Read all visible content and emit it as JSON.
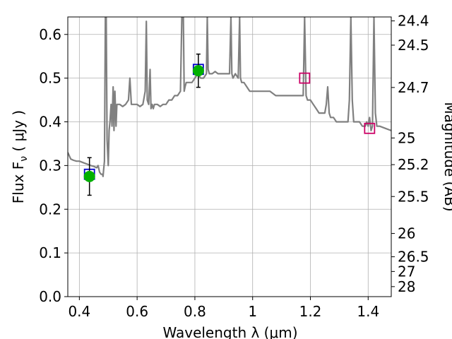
{
  "chart_data": {
    "type": "line",
    "title": "",
    "xlabel": "Wavelength  λ (μm)",
    "ylabel": "Flux  F",
    "ylabel_sub": "ν",
    "ylabel_unit": " ( μJy )",
    "y2label": "Magnitude (AB)",
    "xlim": [
      0.36,
      1.48
    ],
    "ylim": [
      0.0,
      0.64
    ],
    "grid": true,
    "x_ticks": [
      0.4,
      0.6,
      0.8,
      1.0,
      1.2,
      1.4
    ],
    "x_tick_labels": [
      "0.4",
      "0.6",
      "0.8",
      "1",
      "1.2",
      "1.4"
    ],
    "y_ticks": [
      0.0,
      0.1,
      0.2,
      0.3,
      0.4,
      0.5,
      0.6
    ],
    "y_tick_labels": [
      "0.0",
      "0.1",
      "0.2",
      "0.3",
      "0.4",
      "0.5",
      "0.6"
    ],
    "y2_ticks": [
      24.4,
      24.5,
      24.7,
      25,
      25.2,
      25.5,
      26,
      26.5,
      27,
      28
    ],
    "y2_tick_labels": [
      "24.4",
      "24.5",
      "24.7",
      "25",
      "25.2",
      "25.5",
      "26",
      "26.5",
      "27",
      "28"
    ],
    "series": [
      {
        "kind": "spectrum",
        "color": "#808080",
        "x": [
          0.36,
          0.37,
          0.38,
          0.39,
          0.4,
          0.42,
          0.44,
          0.45,
          0.46,
          0.465,
          0.47,
          0.475,
          0.48,
          0.482,
          0.484,
          0.487,
          0.49,
          0.493,
          0.496,
          0.5,
          0.503,
          0.506,
          0.51,
          0.513,
          0.517,
          0.52,
          0.523,
          0.527,
          0.53,
          0.535,
          0.54,
          0.55,
          0.56,
          0.57,
          0.575,
          0.58,
          0.585,
          0.59,
          0.6,
          0.61,
          0.62,
          0.628,
          0.632,
          0.635,
          0.64,
          0.645,
          0.648,
          0.652,
          0.656,
          0.66,
          0.67,
          0.68,
          0.69,
          0.7,
          0.71,
          0.72,
          0.73,
          0.74,
          0.75,
          0.755,
          0.76,
          0.763,
          0.766,
          0.77,
          0.78,
          0.79,
          0.8,
          0.81,
          0.82,
          0.83,
          0.84,
          0.843,
          0.846,
          0.85,
          0.86,
          0.87,
          0.88,
          0.89,
          0.9,
          0.91,
          0.92,
          0.925,
          0.928,
          0.932,
          0.94,
          0.95,
          0.955,
          0.958,
          0.962,
          0.97,
          0.98,
          0.99,
          1.0,
          1.01,
          1.02,
          1.04,
          1.06,
          1.08,
          1.1,
          1.12,
          1.14,
          1.16,
          1.175,
          1.18,
          1.185,
          1.19,
          1.2,
          1.21,
          1.22,
          1.23,
          1.24,
          1.25,
          1.255,
          1.26,
          1.265,
          1.27,
          1.28,
          1.29,
          1.3,
          1.31,
          1.32,
          1.33,
          1.335,
          1.34,
          1.345,
          1.35,
          1.36,
          1.37,
          1.38,
          1.39,
          1.395,
          1.4,
          1.405,
          1.41,
          1.415,
          1.42,
          1.425,
          1.43,
          1.44,
          1.46,
          1.48
        ],
        "y": [
          0.33,
          0.315,
          0.312,
          0.31,
          0.31,
          0.305,
          0.3,
          0.298,
          0.295,
          0.3,
          0.285,
          0.28,
          0.28,
          0.275,
          0.29,
          0.31,
          0.64,
          0.64,
          0.36,
          0.3,
          0.38,
          0.4,
          0.44,
          0.39,
          0.48,
          0.38,
          0.47,
          0.39,
          0.44,
          0.44,
          0.44,
          0.435,
          0.44,
          0.45,
          0.5,
          0.44,
          0.44,
          0.44,
          0.44,
          0.435,
          0.44,
          0.47,
          0.63,
          0.45,
          0.44,
          0.52,
          0.43,
          0.44,
          0.43,
          0.44,
          0.44,
          0.435,
          0.44,
          0.44,
          0.45,
          0.45,
          0.46,
          0.46,
          0.47,
          0.64,
          0.64,
          0.47,
          0.48,
          0.49,
          0.49,
          0.49,
          0.5,
          0.51,
          0.5,
          0.5,
          0.51,
          0.64,
          0.52,
          0.51,
          0.51,
          0.515,
          0.51,
          0.51,
          0.51,
          0.51,
          0.51,
          0.64,
          0.51,
          0.5,
          0.51,
          0.5,
          0.64,
          0.5,
          0.49,
          0.49,
          0.48,
          0.47,
          0.47,
          0.47,
          0.47,
          0.47,
          0.47,
          0.46,
          0.46,
          0.46,
          0.46,
          0.46,
          0.46,
          0.64,
          0.46,
          0.45,
          0.45,
          0.44,
          0.43,
          0.42,
          0.42,
          0.42,
          0.44,
          0.48,
          0.42,
          0.41,
          0.41,
          0.4,
          0.4,
          0.4,
          0.4,
          0.4,
          0.45,
          0.64,
          0.45,
          0.4,
          0.4,
          0.4,
          0.39,
          0.39,
          0.4,
          0.39,
          0.41,
          0.38,
          0.39,
          0.64,
          0.42,
          0.39,
          0.39,
          0.385,
          0.38
        ]
      },
      {
        "kind": "model-photometry",
        "marker": "square",
        "edge_colors": [
          "#0000cc",
          "#0000cc",
          "#cc0066",
          "#cc0066"
        ],
        "x": [
          0.435,
          0.812,
          1.18,
          1.405
        ],
        "y": [
          0.28,
          0.52,
          0.5,
          0.385
        ]
      },
      {
        "kind": "observed-photometry",
        "marker": "circle",
        "color": "#00b000",
        "x": [
          0.435,
          0.812
        ],
        "y": [
          0.275,
          0.517
        ],
        "yerr": [
          0.043,
          0.038
        ]
      }
    ]
  }
}
